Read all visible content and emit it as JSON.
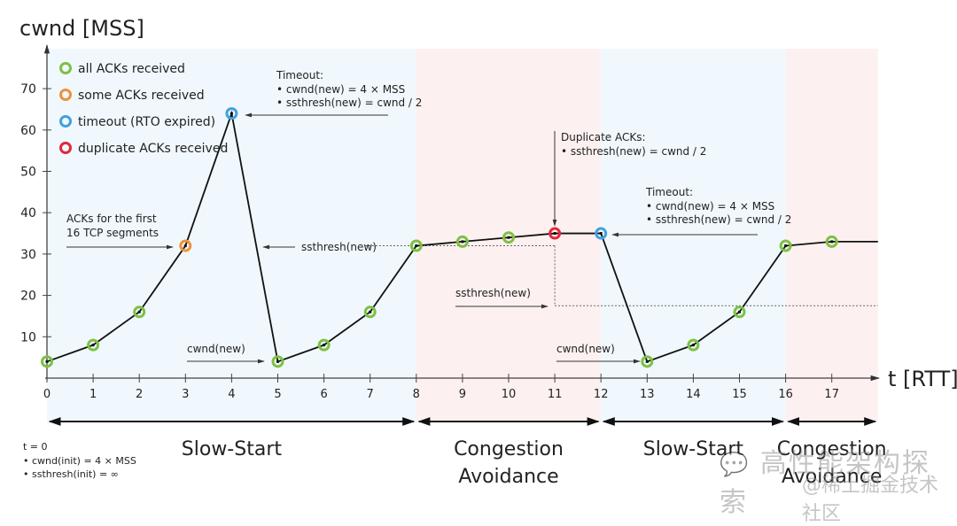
{
  "chart_data": {
    "type": "line",
    "title": "",
    "xlabel": "t [RTT]",
    "ylabel": "cwnd [MSS]",
    "x": [
      0,
      1,
      2,
      3,
      4,
      5,
      6,
      7,
      8,
      9,
      10,
      11,
      12,
      13,
      14,
      15,
      16,
      17
    ],
    "values": [
      4,
      8,
      16,
      32,
      64,
      4,
      8,
      16,
      32,
      33,
      34,
      35,
      35,
      4,
      8,
      16,
      32,
      33
    ],
    "point_status": [
      "all",
      "all",
      "all",
      "some",
      "timeout",
      "all",
      "all",
      "all",
      "all",
      "all",
      "all",
      "all",
      "dup",
      "timeout",
      "all",
      "all",
      "all",
      "all"
    ],
    "point_status_fixed": [
      "all",
      "all",
      "all",
      "some",
      "timeout",
      "all",
      "all",
      "all",
      "all",
      "all",
      "all",
      "dup",
      "timeout",
      "all",
      "all",
      "all",
      "all",
      "all"
    ],
    "tail_value": 33,
    "xlim": [
      0,
      18
    ],
    "ylim": [
      0,
      78
    ],
    "xticks": [
      "0",
      "1",
      "2",
      "3",
      "4",
      "5",
      "6",
      "7",
      "8",
      "9",
      "10",
      "11",
      "12",
      "13",
      "14",
      "15",
      "16",
      "17"
    ],
    "yticks": [
      "10",
      "20",
      "30",
      "40",
      "50",
      "60",
      "70"
    ],
    "ytick_values": [
      10,
      20,
      30,
      40,
      50,
      60,
      70
    ],
    "grid": false,
    "legend_position": "top-left",
    "legend": [
      {
        "key": "all",
        "label": "all ACKs received",
        "color": "#7cc142"
      },
      {
        "key": "some",
        "label": "some ACKs received",
        "color": "#f0913a"
      },
      {
        "key": "timeout",
        "label": "timeout (RTO expired)",
        "color": "#3fa1e0"
      },
      {
        "key": "dup",
        "label": "duplicate ACKs received",
        "color": "#e0283a"
      }
    ],
    "phases": [
      {
        "label": "Slow-Start",
        "from": 0,
        "to": 8,
        "bg": "#f0f8fd"
      },
      {
        "label": "Congestion\nAvoidance",
        "label_lines": [
          "Congestion",
          "Avoidance"
        ],
        "from": 8,
        "to": 12,
        "bg": "#fdf0f0"
      },
      {
        "label": "Slow-Start",
        "from": 12,
        "to": 16,
        "bg": "#f0f8fd"
      },
      {
        "label": "Congestion\nAvoidance",
        "label_lines": [
          "Congestion",
          "Avoidance"
        ],
        "from": 16,
        "to": 18,
        "bg": "#fdf0f0"
      }
    ],
    "ssthresh_lines": [
      {
        "value": 32,
        "from": 8,
        "to": 11
      },
      {
        "value": 17.5,
        "from": 11,
        "to": 18
      }
    ],
    "annotations": {
      "timeout1": {
        "title": "Timeout:",
        "lines": [
          "• cwnd(new) = 4 × MSS",
          "• ssthresh(new) = cwnd / 2"
        ]
      },
      "dup": {
        "title": "Duplicate ACKs:",
        "lines": [
          "• ssthresh(new) = cwnd / 2"
        ]
      },
      "timeout2": {
        "title": "Timeout:",
        "lines": [
          "• cwnd(new) = 4 × MSS",
          "• ssthresh(new) = cwnd / 2"
        ]
      },
      "first16": {
        "lines": [
          "ACKs for the first",
          "16 TCP segments"
        ]
      },
      "ssthresh_new_1": "ssthresh(new)",
      "ssthresh_new_2": "ssthresh(new)",
      "cwnd_new_1": "cwnd(new)",
      "cwnd_new_2": "cwnd(new)",
      "init": {
        "title": "t = 0",
        "lines": [
          "• cwnd(init) = 4 × MSS",
          "• ssthresh(init) = ∞"
        ]
      }
    }
  },
  "watermark": {
    "line1": "高性能架构探索",
    "line2": "@稀土掘金技术社区"
  },
  "colors": {
    "line": "#111111",
    "axis": "#444444",
    "annot": "#333333"
  }
}
